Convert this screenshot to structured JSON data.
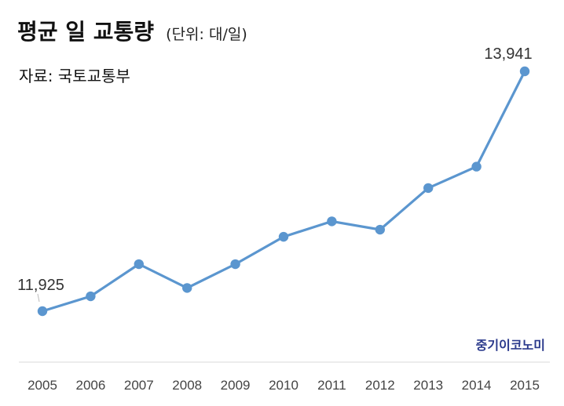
{
  "title": "평균 일 교통량",
  "unit_note": "(단위: 대/일)",
  "source": "자료: 국토교통부",
  "brand": "중기이코노미",
  "colors": {
    "line": "#5b96cf",
    "marker": "#5b96cf",
    "axis": "#d9d9d9",
    "brand": "#2b3a8c"
  },
  "chart_data": {
    "type": "line",
    "title": "평균 일 교통량",
    "unit": "대/일",
    "xlabel": "",
    "ylabel": "",
    "grid": false,
    "legend": "none",
    "categories": [
      "2005",
      "2006",
      "2007",
      "2008",
      "2009",
      "2010",
      "2011",
      "2012",
      "2013",
      "2014",
      "2015"
    ],
    "series": [
      {
        "values": [
          11925,
          12050,
          12320,
          12120,
          12320,
          12550,
          12680,
          12610,
          12960,
          13140,
          13941
        ]
      }
    ],
    "data_labels": [
      {
        "index": 0,
        "text": "11,925"
      },
      {
        "index": 10,
        "text": "13,941"
      }
    ]
  }
}
